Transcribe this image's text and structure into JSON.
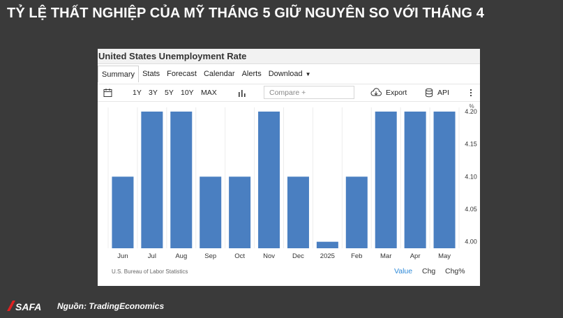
{
  "headline": "TỶ LỆ THẤT NGHIỆP CỦA MỸ THÁNG 5 GIỮ NGUYÊN SO VỚI THÁNG 4",
  "panel": {
    "title": "United States Unemployment Rate",
    "tabs": [
      "Summary",
      "Stats",
      "Forecast",
      "Calendar",
      "Alerts",
      "Download"
    ],
    "active_tab": "Summary",
    "ranges": [
      "1Y",
      "3Y",
      "5Y",
      "10Y",
      "MAX"
    ],
    "compare_placeholder": "Compare +",
    "export_label": "Export",
    "api_label": "API",
    "source": "U.S. Bureau of Labor Statistics",
    "footer_tabs": [
      "Value",
      "Chg",
      "Chg%"
    ],
    "active_footer_tab": "Value"
  },
  "brand": {
    "logo_text": "ISAFA",
    "logo_color": "#e02020"
  },
  "source_note": "Nguồn: TradingEconomics",
  "chart_data": {
    "type": "bar",
    "categories": [
      "Jun",
      "Jul",
      "Aug",
      "Sep",
      "Oct",
      "Nov",
      "Dec",
      "2025",
      "Feb",
      "Mar",
      "Apr",
      "May"
    ],
    "values": [
      4.1,
      4.2,
      4.2,
      4.1,
      4.1,
      4.2,
      4.1,
      4.0,
      4.1,
      4.2,
      4.2,
      4.2
    ],
    "yticks": [
      4.0,
      4.05,
      4.1,
      4.15,
      4.2
    ],
    "ytick_labels": [
      "4.00",
      "4.05",
      "4.10",
      "4.15",
      "4.20"
    ],
    "yunit": "%",
    "ylim": [
      3.99,
      4.2
    ],
    "bar_color": "#4a7fc1",
    "grid": "vertical light lines",
    "title": "",
    "xlabel": "",
    "ylabel": ""
  }
}
